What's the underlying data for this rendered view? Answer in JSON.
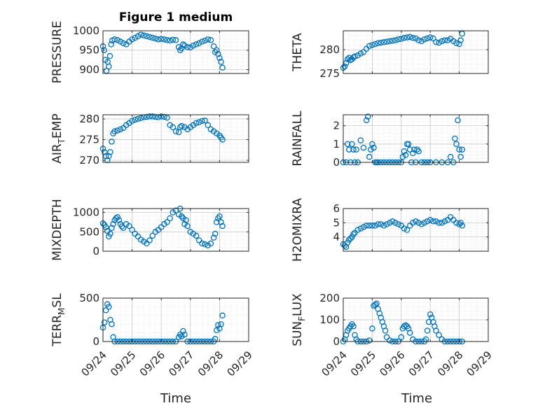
{
  "figure_title": "Figure 1 medium",
  "xlabel": "Time",
  "x_ticklabels": [
    "09/24",
    "09/25",
    "09/26",
    "09/27",
    "09/28",
    "09/29"
  ],
  "marker_color": "#0072BD",
  "chart_data": [
    {
      "type": "scatter",
      "ylabel": "PRESSURE",
      "ylabel_sub": null,
      "xlim": [
        0,
        5
      ],
      "ylim": [
        890,
        1000
      ],
      "yticks": [
        900,
        950,
        1000
      ],
      "grid": true,
      "x": [
        0.0,
        0.04,
        0.08,
        0.12,
        0.16,
        0.2,
        0.24,
        0.28,
        0.32,
        0.4,
        0.5,
        0.6,
        0.7,
        0.8,
        0.9,
        1.0,
        1.1,
        1.2,
        1.3,
        1.4,
        1.5,
        1.6,
        1.7,
        1.8,
        1.9,
        2.0,
        2.1,
        2.2,
        2.3,
        2.4,
        2.5,
        2.6,
        2.65,
        2.7,
        2.75,
        2.8,
        2.9,
        3.0,
        3.1,
        3.2,
        3.3,
        3.4,
        3.5,
        3.6,
        3.7,
        3.8,
        3.85,
        3.9,
        3.95,
        4.0,
        4.05,
        4.1
      ],
      "y": [
        960,
        950,
        925,
        897,
        920,
        908,
        935,
        965,
        975,
        978,
        976,
        972,
        968,
        965,
        972,
        978,
        982,
        986,
        990,
        988,
        986,
        984,
        982,
        980,
        978,
        979,
        978,
        976,
        975,
        977,
        976,
        958,
        950,
        955,
        965,
        962,
        958,
        957,
        962,
        965,
        968,
        972,
        975,
        978,
        976,
        960,
        945,
        950,
        940,
        930,
        920,
        905
      ]
    },
    {
      "type": "scatter",
      "ylabel": "THETA",
      "ylabel_sub": null,
      "xlim": [
        0,
        5
      ],
      "ylim": [
        275,
        284
      ],
      "yticks": [
        275,
        280
      ],
      "grid": true,
      "x": [
        0.0,
        0.05,
        0.1,
        0.15,
        0.2,
        0.25,
        0.3,
        0.35,
        0.4,
        0.5,
        0.6,
        0.7,
        0.8,
        0.9,
        1.0,
        1.1,
        1.2,
        1.3,
        1.4,
        1.5,
        1.6,
        1.7,
        1.8,
        1.9,
        2.0,
        2.1,
        2.2,
        2.3,
        2.4,
        2.5,
        2.6,
        2.7,
        2.8,
        2.9,
        3.0,
        3.1,
        3.2,
        3.3,
        3.4,
        3.5,
        3.6,
        3.7,
        3.8,
        3.9,
        4.0,
        4.05,
        4.1
      ],
      "y": [
        276.2,
        276.5,
        277.2,
        278.0,
        278.3,
        277.8,
        278.0,
        278.4,
        278.6,
        278.8,
        279.2,
        279.5,
        280.2,
        280.8,
        281.0,
        281.2,
        281.4,
        281.5,
        281.6,
        281.7,
        281.8,
        281.9,
        282.0,
        282.2,
        282.3,
        282.5,
        282.6,
        282.7,
        282.5,
        282.4,
        282.0,
        281.8,
        282.2,
        282.4,
        282.6,
        282.4,
        281.6,
        281.5,
        281.8,
        282.0,
        282.0,
        282.3,
        281.8,
        281.4,
        281.2,
        282.0,
        283.4
      ]
    },
    {
      "type": "scatter",
      "ylabel": "AIR",
      "ylabel_sub": "T",
      "ylabel_after": "EMP",
      "xlim": [
        0,
        5
      ],
      "ylim": [
        269.5,
        281
      ],
      "yticks": [
        270,
        275,
        280
      ],
      "grid": true,
      "x": [
        0.0,
        0.05,
        0.1,
        0.15,
        0.2,
        0.25,
        0.3,
        0.35,
        0.4,
        0.5,
        0.6,
        0.7,
        0.8,
        0.9,
        1.0,
        1.1,
        1.2,
        1.3,
        1.4,
        1.5,
        1.6,
        1.7,
        1.8,
        1.9,
        2.0,
        2.1,
        2.2,
        2.3,
        2.4,
        2.5,
        2.6,
        2.65,
        2.7,
        2.8,
        2.9,
        3.0,
        3.1,
        3.2,
        3.3,
        3.4,
        3.5,
        3.6,
        3.7,
        3.8,
        3.9,
        4.0,
        4.05,
        4.1
      ],
      "y": [
        272.8,
        272.0,
        271.0,
        270.0,
        271.0,
        272.0,
        274.5,
        276.5,
        277.0,
        277.2,
        277.5,
        277.8,
        278.5,
        279.0,
        279.5,
        279.8,
        280.0,
        280.2,
        280.4,
        280.5,
        280.6,
        280.6,
        280.5,
        280.4,
        280.6,
        280.5,
        280.3,
        278.5,
        278.0,
        277.0,
        276.8,
        278.0,
        278.3,
        278.0,
        277.5,
        278.0,
        278.5,
        279.0,
        279.2,
        279.5,
        279.6,
        278.5,
        277.5,
        277.0,
        276.5,
        276.0,
        275.5,
        275.0
      ]
    },
    {
      "type": "scatter",
      "ylabel": "RAINFALL",
      "ylabel_sub": null,
      "xlim": [
        0,
        5
      ],
      "ylim": [
        0,
        2.6
      ],
      "yticks": [
        0,
        1,
        2
      ],
      "grid": true,
      "x": [
        0.0,
        0.1,
        0.15,
        0.2,
        0.25,
        0.3,
        0.35,
        0.4,
        0.45,
        0.5,
        0.6,
        0.7,
        0.8,
        0.85,
        0.9,
        0.95,
        1.0,
        1.05,
        1.1,
        1.15,
        1.2,
        1.3,
        1.4,
        1.5,
        1.6,
        1.7,
        1.8,
        1.9,
        2.0,
        2.05,
        2.1,
        2.15,
        2.2,
        2.25,
        2.3,
        2.35,
        2.4,
        2.45,
        2.5,
        2.55,
        2.6,
        2.7,
        2.8,
        2.9,
        3.0,
        3.2,
        3.4,
        3.6,
        3.7,
        3.8,
        3.85,
        3.9,
        3.95,
        4.0,
        4.05,
        4.1
      ],
      "y": [
        0.0,
        0.0,
        1.0,
        0.7,
        0.0,
        1.0,
        0.7,
        0.0,
        0.7,
        0.0,
        1.2,
        0.8,
        2.3,
        2.5,
        0.3,
        0.7,
        1.0,
        0.8,
        0.0,
        0.0,
        0.0,
        0.0,
        0.0,
        0.0,
        0.0,
        0.0,
        0.0,
        0.0,
        0.0,
        0.3,
        0.6,
        0.4,
        1.0,
        1.0,
        0.7,
        0.0,
        0.5,
        0.7,
        0.0,
        0.7,
        0.6,
        0.0,
        0.0,
        0.0,
        0.0,
        0.0,
        0.0,
        0.0,
        0.3,
        0.0,
        1.3,
        1.0,
        2.3,
        0.7,
        0.3,
        0.7
      ]
    },
    {
      "type": "scatter",
      "ylabel": "MIXDEPTH",
      "ylabel_sub": null,
      "xlim": [
        0,
        5
      ],
      "ylim": [
        0,
        1100
      ],
      "yticks": [
        0,
        500,
        1000
      ],
      "grid": true,
      "x": [
        0.0,
        0.05,
        0.1,
        0.15,
        0.2,
        0.25,
        0.3,
        0.35,
        0.4,
        0.45,
        0.5,
        0.55,
        0.6,
        0.65,
        0.7,
        0.8,
        0.9,
        1.0,
        1.1,
        1.2,
        1.3,
        1.4,
        1.5,
        1.6,
        1.7,
        1.8,
        1.9,
        2.0,
        2.1,
        2.2,
        2.3,
        2.4,
        2.5,
        2.6,
        2.65,
        2.7,
        2.75,
        2.8,
        2.85,
        2.9,
        3.0,
        3.1,
        3.2,
        3.3,
        3.4,
        3.5,
        3.6,
        3.7,
        3.8,
        3.85,
        3.9,
        3.95,
        4.0,
        4.05,
        4.1
      ],
      "y": [
        720,
        680,
        620,
        520,
        380,
        450,
        600,
        700,
        800,
        850,
        880,
        800,
        700,
        640,
        600,
        700,
        650,
        550,
        450,
        380,
        300,
        250,
        200,
        280,
        400,
        500,
        550,
        620,
        700,
        750,
        850,
        1000,
        1050,
        950,
        1100,
        900,
        850,
        700,
        800,
        650,
        500,
        450,
        400,
        280,
        200,
        180,
        150,
        200,
        350,
        450,
        750,
        850,
        900,
        750,
        650
      ]
    },
    {
      "type": "scatter",
      "ylabel": "H2OMIXRA",
      "ylabel_sub": null,
      "xlim": [
        0,
        5
      ],
      "ylim": [
        3.0,
        6.0
      ],
      "yticks": [
        4,
        5,
        6
      ],
      "grid": true,
      "x": [
        0.0,
        0.05,
        0.1,
        0.15,
        0.2,
        0.25,
        0.3,
        0.35,
        0.4,
        0.5,
        0.6,
        0.7,
        0.8,
        0.9,
        1.0,
        1.1,
        1.2,
        1.3,
        1.4,
        1.5,
        1.6,
        1.7,
        1.8,
        1.9,
        2.0,
        2.1,
        2.2,
        2.3,
        2.4,
        2.5,
        2.6,
        2.7,
        2.8,
        2.9,
        3.0,
        3.1,
        3.2,
        3.3,
        3.4,
        3.5,
        3.6,
        3.7,
        3.8,
        3.9,
        4.0,
        4.05,
        4.1
      ],
      "y": [
        3.5,
        3.4,
        3.3,
        3.6,
        3.8,
        3.9,
        4.0,
        4.2,
        4.3,
        4.5,
        4.6,
        4.7,
        4.8,
        4.8,
        4.8,
        4.8,
        4.9,
        4.9,
        4.8,
        4.9,
        5.0,
        5.1,
        5.0,
        4.9,
        4.8,
        4.6,
        4.5,
        4.8,
        5.0,
        5.1,
        5.0,
        4.9,
        5.0,
        5.1,
        5.2,
        5.1,
        5.1,
        5.0,
        5.0,
        5.1,
        5.2,
        5.4,
        5.2,
        5.0,
        4.9,
        5.0,
        4.8
      ]
    },
    {
      "type": "scatter",
      "ylabel": "TERR",
      "ylabel_sub": "M",
      "ylabel_after": "SL",
      "xlim": [
        0,
        5
      ],
      "ylim": [
        0,
        500
      ],
      "yticks": [
        0,
        500
      ],
      "grid": true,
      "x": [
        0.0,
        0.05,
        0.1,
        0.15,
        0.2,
        0.25,
        0.3,
        0.35,
        0.4,
        0.5,
        0.6,
        0.7,
        0.8,
        0.9,
        1.0,
        1.1,
        1.2,
        1.3,
        1.4,
        1.5,
        1.6,
        1.7,
        1.8,
        1.9,
        2.0,
        2.1,
        2.2,
        2.3,
        2.4,
        2.5,
        2.6,
        2.65,
        2.7,
        2.75,
        2.8,
        2.9,
        3.0,
        3.1,
        3.2,
        3.3,
        3.4,
        3.5,
        3.6,
        3.7,
        3.8,
        3.85,
        3.9,
        3.95,
        4.0,
        4.05,
        4.1
      ],
      "y": [
        160,
        220,
        360,
        430,
        400,
        250,
        200,
        50,
        0,
        0,
        0,
        0,
        0,
        0,
        0,
        0,
        0,
        0,
        0,
        0,
        0,
        0,
        0,
        0,
        0,
        0,
        0,
        0,
        0,
        0,
        50,
        80,
        60,
        120,
        80,
        0,
        0,
        0,
        0,
        0,
        0,
        0,
        0,
        0,
        0,
        30,
        130,
        190,
        150,
        200,
        300
      ]
    },
    {
      "type": "scatter",
      "ylabel": "SUN",
      "ylabel_sub": "F",
      "ylabel_after": "LUX",
      "xlim": [
        0,
        5
      ],
      "ylim": [
        0,
        200
      ],
      "yticks": [
        0,
        100,
        200
      ],
      "grid": true,
      "x": [
        0.0,
        0.05,
        0.1,
        0.15,
        0.2,
        0.25,
        0.3,
        0.35,
        0.4,
        0.45,
        0.5,
        0.6,
        0.7,
        0.8,
        0.9,
        1.0,
        1.05,
        1.1,
        1.15,
        1.2,
        1.25,
        1.3,
        1.35,
        1.4,
        1.45,
        1.5,
        1.6,
        1.7,
        1.8,
        1.9,
        2.0,
        2.05,
        2.1,
        2.15,
        2.2,
        2.25,
        2.3,
        2.4,
        2.5,
        2.6,
        2.7,
        2.8,
        2.85,
        2.9,
        2.95,
        3.0,
        3.05,
        3.1,
        3.15,
        3.2,
        3.3,
        3.4,
        3.5,
        3.6,
        3.7,
        3.8,
        3.9,
        4.0,
        4.1
      ],
      "y": [
        0,
        10,
        30,
        50,
        60,
        70,
        80,
        70,
        30,
        10,
        0,
        0,
        0,
        0,
        5,
        60,
        165,
        170,
        175,
        150,
        130,
        110,
        90,
        70,
        50,
        20,
        5,
        0,
        0,
        0,
        20,
        60,
        70,
        75,
        70,
        60,
        40,
        10,
        0,
        0,
        0,
        0,
        10,
        50,
        90,
        125,
        110,
        90,
        70,
        50,
        30,
        10,
        0,
        0,
        0,
        0,
        0,
        0,
        0
      ]
    }
  ]
}
